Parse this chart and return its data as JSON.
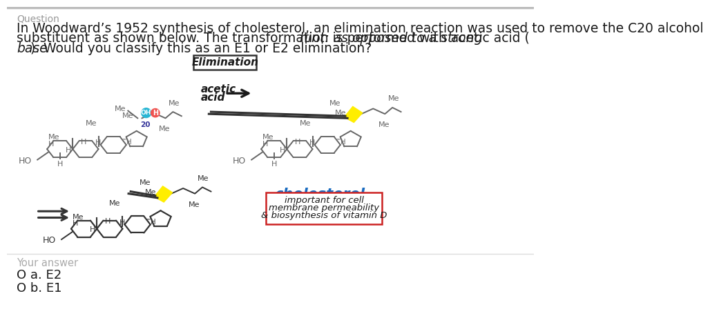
{
  "bg_color": "#ffffff",
  "question_label": "Question",
  "question_label_color": "#999999",
  "line1": "In Woodward’s 1952 synthesis of cholesterol, an elimination reaction was used to remove the C20 alcohol",
  "line2a": "substituent as shown below. The transformation is performed with acetic acid (",
  "line2b": "hint: as opposed to a strong",
  "line3a": "base",
  "line3b": "). Would you classify this as an E1 or E2 elimination?",
  "elim_text": "Elimination",
  "acetic_line1": "acetic",
  "acetic_line2": "acid",
  "cholesterol_text": "cholesterol",
  "cholesterol_color": "#1a6bbf",
  "box_line1": "important for cell",
  "box_line2": "membrane permeability",
  "box_line3": "& biosynthesis of vitamin D",
  "box_border": "#cc2222",
  "your_answer": "Your answer",
  "your_answer_color": "#aaaaaa",
  "opt_a": "O a. E2",
  "opt_b": "O b. E1",
  "oh_color": "#29b6d4",
  "h_color": "#ef5350",
  "yellow": "#ffee00",
  "mol_color": "#666666",
  "mol_color_dark": "#333333",
  "text_fs": 13.5,
  "label_fs": 10.5
}
